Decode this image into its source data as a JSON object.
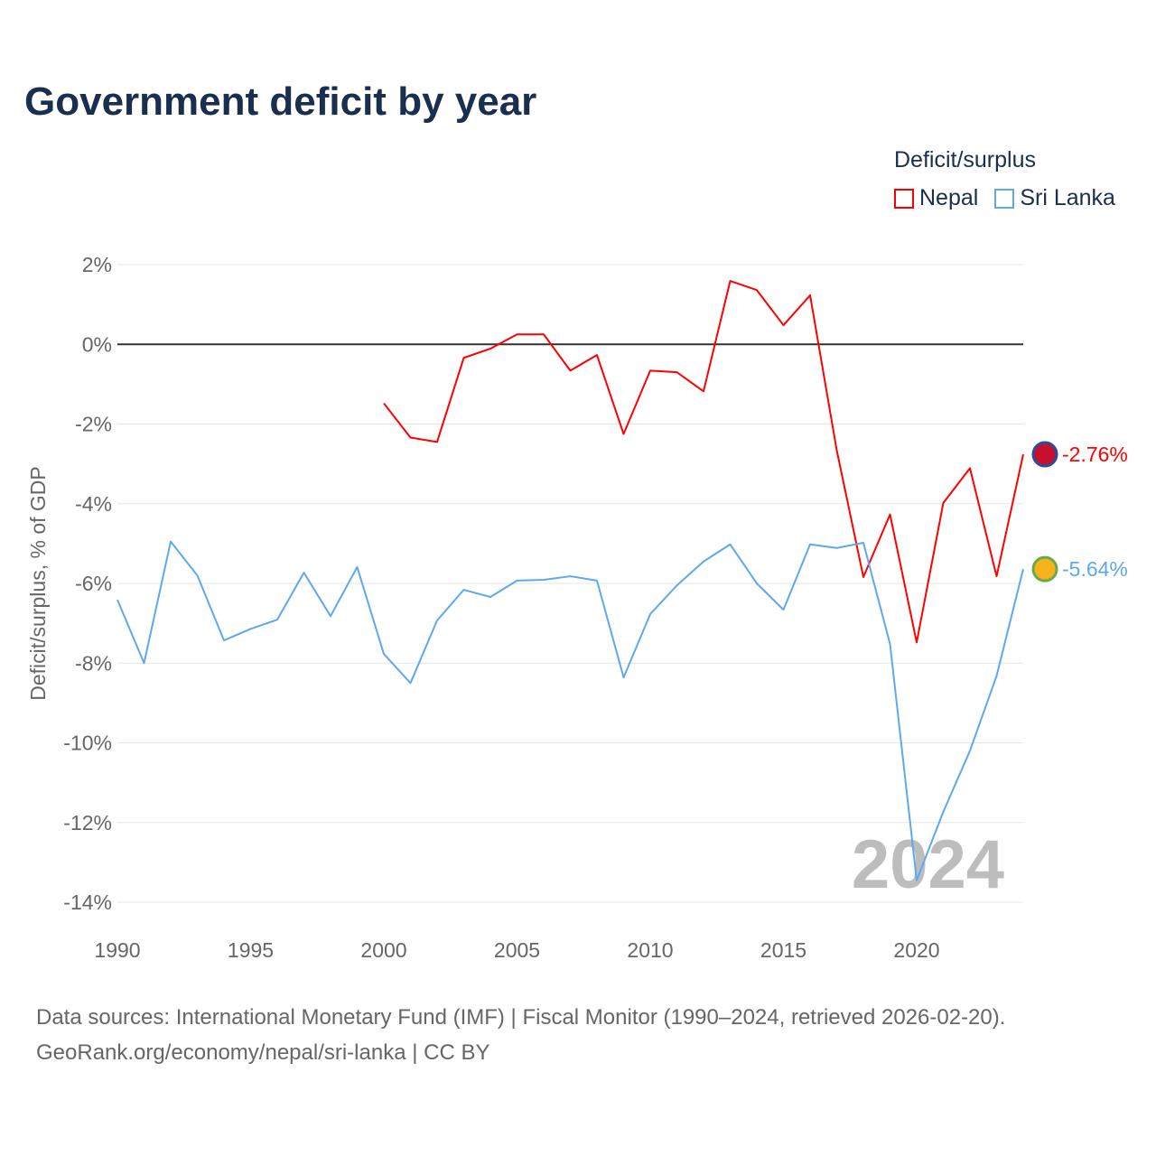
{
  "chart_data": {
    "type": "line",
    "title": "Government deficit by year",
    "xlabel": "",
    "ylabel": "Deficit/surplus, % of GDP",
    "xlim": [
      1990,
      2024
    ],
    "ylim": [
      -14,
      2
    ],
    "x_ticks": [
      "1990",
      "1995",
      "2000",
      "2005",
      "2010",
      "2015",
      "2020"
    ],
    "y_ticks": [
      {
        "v": 2,
        "label": "2%"
      },
      {
        "v": 0,
        "label": "0%"
      },
      {
        "v": -2,
        "label": "-2%"
      },
      {
        "v": -4,
        "label": "-4%"
      },
      {
        "v": -6,
        "label": "-6%"
      },
      {
        "v": -8,
        "label": "-8%"
      },
      {
        "v": -10,
        "label": "-10%"
      },
      {
        "v": -12,
        "label": "-12%"
      },
      {
        "v": -14,
        "label": "-14%"
      }
    ],
    "legend_title": "Deficit/surplus",
    "legend_position": "top-right",
    "year_watermark": "2024",
    "grid": true,
    "series": [
      {
        "name": "Nepal",
        "color": "#ff0000",
        "end_label": "-2.76%",
        "x": [
          2000,
          2001,
          2002,
          2003,
          2004,
          2005,
          2006,
          2007,
          2008,
          2009,
          2010,
          2011,
          2012,
          2013,
          2014,
          2015,
          2016,
          2017,
          2018,
          2019,
          2020,
          2021,
          2022,
          2023,
          2024
        ],
        "values": [
          -1.48,
          -2.34,
          -2.45,
          -0.34,
          -0.11,
          0.25,
          0.25,
          -0.66,
          -0.27,
          -2.25,
          -0.66,
          -0.7,
          -1.18,
          1.59,
          1.36,
          0.48,
          1.23,
          -2.66,
          -5.84,
          -4.27,
          -7.48,
          -3.98,
          -3.11,
          -5.82,
          -2.76
        ]
      },
      {
        "name": "Sri Lanka",
        "color": "#5ea8ee",
        "end_label": "-5.64%",
        "x": [
          1990,
          1991,
          1992,
          1993,
          1994,
          1995,
          1996,
          1997,
          1998,
          1999,
          2000,
          2001,
          2002,
          2003,
          2004,
          2005,
          2006,
          2007,
          2008,
          2009,
          2010,
          2011,
          2012,
          2013,
          2014,
          2015,
          2016,
          2017,
          2018,
          2019,
          2020,
          2021,
          2022,
          2023,
          2024
        ],
        "values": [
          -6.41,
          -8.0,
          -4.95,
          -5.8,
          -7.43,
          -7.14,
          -6.91,
          -5.73,
          -6.82,
          -5.59,
          -7.77,
          -8.5,
          -6.93,
          -6.16,
          -6.34,
          -5.93,
          -5.91,
          -5.82,
          -5.93,
          -8.36,
          -6.77,
          -6.05,
          -5.45,
          -5.02,
          -6.0,
          -6.66,
          -5.02,
          -5.11,
          -4.98,
          -7.52,
          -13.45,
          -11.73,
          -10.2,
          -8.32,
          -5.64
        ]
      }
    ]
  },
  "source": {
    "line1": "Data sources: International Monetary Fund (IMF) | Fiscal Monitor (1990–2024, retrieved 2026-02-20).",
    "line2": "GeoRank.org/economy/nepal/sri-lanka | CC BY"
  }
}
